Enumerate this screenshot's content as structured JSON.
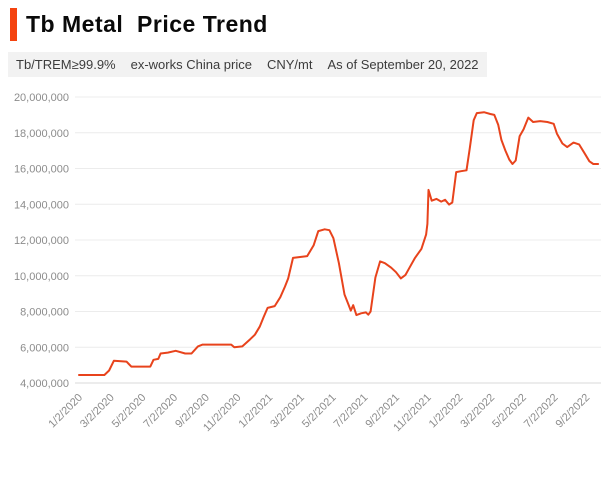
{
  "header": {
    "title": "Tb Metal  Price Trend",
    "subtitle_segments": [
      "Tb/TREM≥99.9%",
      "ex-works China price",
      "CNY/mt",
      "As of September 20, 2022"
    ]
  },
  "style": {
    "accent_color": "#f4430f",
    "line_color": "#e8431c",
    "grid_color": "#ececec",
    "axis_line_color": "#d9d9d9",
    "tick_text_color": "#8c8c8c",
    "subtitle_bg": "#f2f2f2"
  },
  "chart_data": {
    "type": "line",
    "title": "Tb Metal Price Trend",
    "subtitle": "Tb/TREM≥99.9% ex-works China price CNY/mt As of September 20, 2022",
    "legend": "none",
    "grid": "horizontal",
    "y_axis": {
      "unit": "CNY/mt",
      "ylim": [
        4000000,
        20000000
      ],
      "tick_values": [
        4000000,
        6000000,
        8000000,
        10000000,
        12000000,
        14000000,
        16000000,
        18000000,
        20000000
      ],
      "tick_labels": [
        "4,000,000",
        "6,000,000",
        "8,000,000",
        "10,000,000",
        "12,000,000",
        "14,000,000",
        "16,000,000",
        "18,000,000",
        "20,000,000"
      ]
    },
    "x_axis": {
      "unit": "months since 2020-01-02",
      "xlim_months": [
        -0.3,
        33.0
      ],
      "tick_month_positions": [
        0,
        2,
        4,
        6,
        8,
        10,
        12,
        14,
        16,
        18,
        20,
        22,
        24,
        26,
        28,
        30,
        32
      ],
      "tick_labels": [
        "1/2/2020",
        "3/2/2020",
        "5/2/2020",
        "7/2/2020",
        "9/2/2020",
        "11/2/2020",
        "1/2/2021",
        "3/2/2021",
        "5/2/2021",
        "7/2/2021",
        "9/2/2021",
        "11/2/2021",
        "1/2/2022",
        "3/2/2022",
        "5/2/2022",
        "7/2/2022",
        "9/2/2022"
      ]
    },
    "series": [
      {
        "name": "Tb/TREM≥99.9% ex-works China price",
        "color": "#e8431c",
        "points_month_value": [
          [
            0,
            4450000
          ],
          [
            1.6,
            4450000
          ],
          [
            1.9,
            4700000
          ],
          [
            2.2,
            5250000
          ],
          [
            3.0,
            5200000
          ],
          [
            3.3,
            4920000
          ],
          [
            4.5,
            4920000
          ],
          [
            4.7,
            5300000
          ],
          [
            5.0,
            5350000
          ],
          [
            5.15,
            5650000
          ],
          [
            5.6,
            5700000
          ],
          [
            6.1,
            5800000
          ],
          [
            6.7,
            5650000
          ],
          [
            7.1,
            5650000
          ],
          [
            7.5,
            6050000
          ],
          [
            7.8,
            6150000
          ],
          [
            9.6,
            6150000
          ],
          [
            9.8,
            6000000
          ],
          [
            10.3,
            6050000
          ],
          [
            10.8,
            6450000
          ],
          [
            11.1,
            6700000
          ],
          [
            11.4,
            7150000
          ],
          [
            11.65,
            7700000
          ],
          [
            11.9,
            8200000
          ],
          [
            12.35,
            8300000
          ],
          [
            12.7,
            8800000
          ],
          [
            13.0,
            9400000
          ],
          [
            13.2,
            9850000
          ],
          [
            13.5,
            11000000
          ],
          [
            14.4,
            11100000
          ],
          [
            14.8,
            11700000
          ],
          [
            15.1,
            12500000
          ],
          [
            15.5,
            12600000
          ],
          [
            15.8,
            12550000
          ],
          [
            16.05,
            12100000
          ],
          [
            16.4,
            10700000
          ],
          [
            16.75,
            8950000
          ],
          [
            17.0,
            8400000
          ],
          [
            17.15,
            8050000
          ],
          [
            17.3,
            8350000
          ],
          [
            17.5,
            7800000
          ],
          [
            17.8,
            7900000
          ],
          [
            18.1,
            7950000
          ],
          [
            18.25,
            7820000
          ],
          [
            18.4,
            8000000
          ],
          [
            18.7,
            9900000
          ],
          [
            19.0,
            10800000
          ],
          [
            19.3,
            10700000
          ],
          [
            19.7,
            10450000
          ],
          [
            20.0,
            10200000
          ],
          [
            20.3,
            9850000
          ],
          [
            20.6,
            10050000
          ],
          [
            20.85,
            10450000
          ],
          [
            21.2,
            11000000
          ],
          [
            21.6,
            11500000
          ],
          [
            21.9,
            12300000
          ],
          [
            21.98,
            12900000
          ],
          [
            22.05,
            14800000
          ],
          [
            22.25,
            14200000
          ],
          [
            22.55,
            14300000
          ],
          [
            22.85,
            14150000
          ],
          [
            23.1,
            14250000
          ],
          [
            23.35,
            13980000
          ],
          [
            23.55,
            14100000
          ],
          [
            23.8,
            15800000
          ],
          [
            24.1,
            15850000
          ],
          [
            24.45,
            15900000
          ],
          [
            24.65,
            17100000
          ],
          [
            24.9,
            18700000
          ],
          [
            25.1,
            19100000
          ],
          [
            25.55,
            19150000
          ],
          [
            25.95,
            19050000
          ],
          [
            26.2,
            19000000
          ],
          [
            26.45,
            18450000
          ],
          [
            26.65,
            17600000
          ],
          [
            26.9,
            17000000
          ],
          [
            27.15,
            16500000
          ],
          [
            27.35,
            16250000
          ],
          [
            27.55,
            16450000
          ],
          [
            27.8,
            17800000
          ],
          [
            28.05,
            18200000
          ],
          [
            28.35,
            18850000
          ],
          [
            28.65,
            18600000
          ],
          [
            29.1,
            18650000
          ],
          [
            29.55,
            18600000
          ],
          [
            29.95,
            18500000
          ],
          [
            30.15,
            17950000
          ],
          [
            30.5,
            17400000
          ],
          [
            30.8,
            17200000
          ],
          [
            31.2,
            17450000
          ],
          [
            31.55,
            17350000
          ],
          [
            31.9,
            16850000
          ],
          [
            32.2,
            16400000
          ],
          [
            32.45,
            16250000
          ],
          [
            32.75,
            16250000
          ]
        ]
      }
    ]
  }
}
